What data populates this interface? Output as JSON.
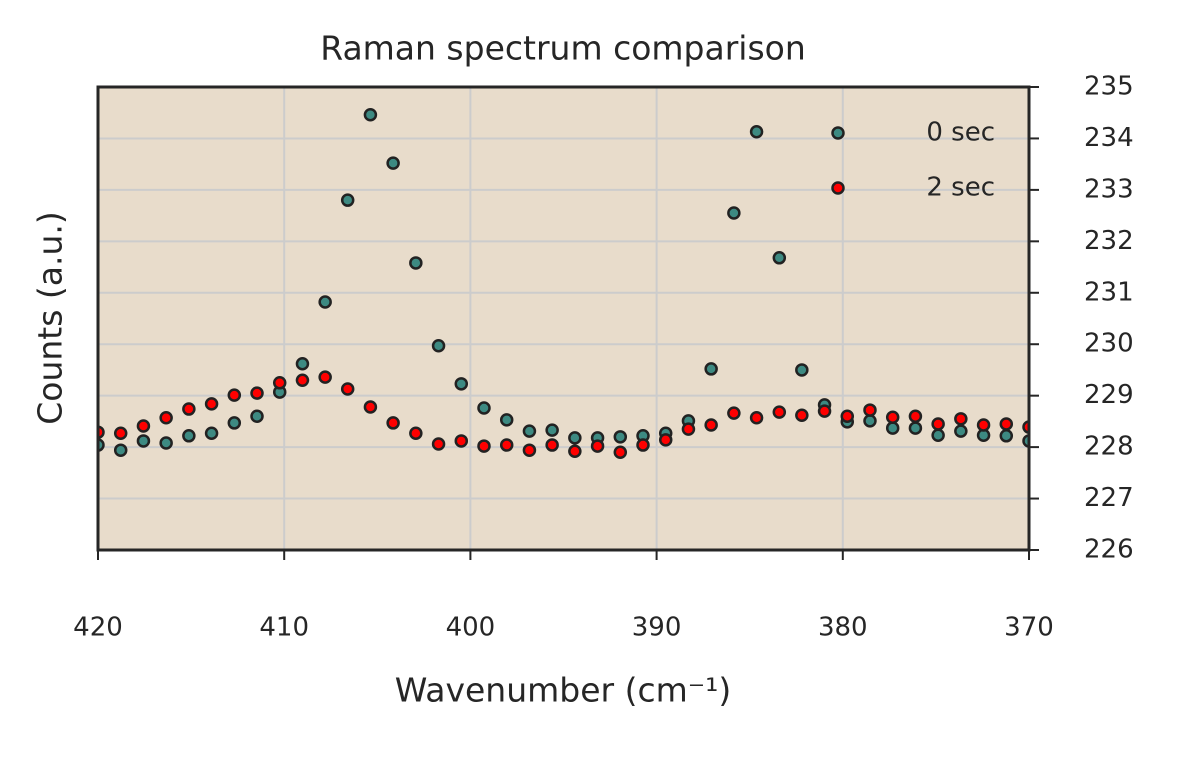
{
  "chart_data": {
    "type": "scatter",
    "title": "Raman spectrum comparison",
    "x_label": "Wavenumber (cm⁻¹)",
    "y_label": "Counts (a.u.)",
    "x": [
      420,
      418.78,
      417.56,
      416.34,
      415.12,
      413.9,
      412.68,
      411.46,
      410.24,
      409.02,
      407.8,
      406.59,
      405.37,
      404.15,
      402.93,
      401.71,
      400.49,
      399.27,
      398.05,
      396.83,
      395.61,
      394.39,
      393.17,
      391.95,
      390.73,
      389.51,
      388.29,
      387.07,
      385.85,
      384.63,
      383.41,
      382.2,
      380.98,
      379.76,
      378.54,
      377.32,
      376.1,
      374.88,
      373.66,
      372.44,
      371.22,
      370
    ],
    "series": [
      {
        "name": "0 sec",
        "color": "#3d8a82",
        "values": [
          228.04,
          227.94,
          228.12,
          228.08,
          228.22,
          228.27,
          228.47,
          228.6,
          229.07,
          229.62,
          230.82,
          232.8,
          234.46,
          233.52,
          231.58,
          229.97,
          229.23,
          228.76,
          228.53,
          228.31,
          228.33,
          228.18,
          228.18,
          228.2,
          228.22,
          228.27,
          228.51,
          229.52,
          232.55,
          234.13,
          231.68,
          229.5,
          228.82,
          228.49,
          228.51,
          228.37,
          228.37,
          228.23,
          228.31,
          228.23,
          228.22,
          228.12
        ]
      },
      {
        "name": "2 sec",
        "color": "#ff0000",
        "values": [
          228.29,
          228.27,
          228.41,
          228.57,
          228.74,
          228.84,
          229.01,
          229.05,
          229.25,
          229.3,
          229.36,
          229.13,
          228.78,
          228.47,
          228.27,
          228.06,
          228.12,
          228.02,
          228.04,
          227.94,
          228.04,
          227.92,
          228.02,
          227.9,
          228.04,
          228.14,
          228.35,
          228.43,
          228.66,
          228.57,
          228.68,
          228.62,
          228.7,
          228.6,
          228.72,
          228.58,
          228.6,
          228.45,
          228.55,
          228.43,
          228.45,
          228.39
        ]
      }
    ],
    "xlim": [
      420,
      370
    ],
    "xticks": [
      420,
      410,
      400,
      390,
      380,
      370
    ],
    "ylim": [
      226,
      235
    ],
    "yticks": [
      226,
      227,
      228,
      229,
      230,
      231,
      232,
      233,
      234,
      235
    ],
    "y_axis_side": "right",
    "grid": true,
    "legend": "upper right",
    "background": "#e8dccb"
  }
}
